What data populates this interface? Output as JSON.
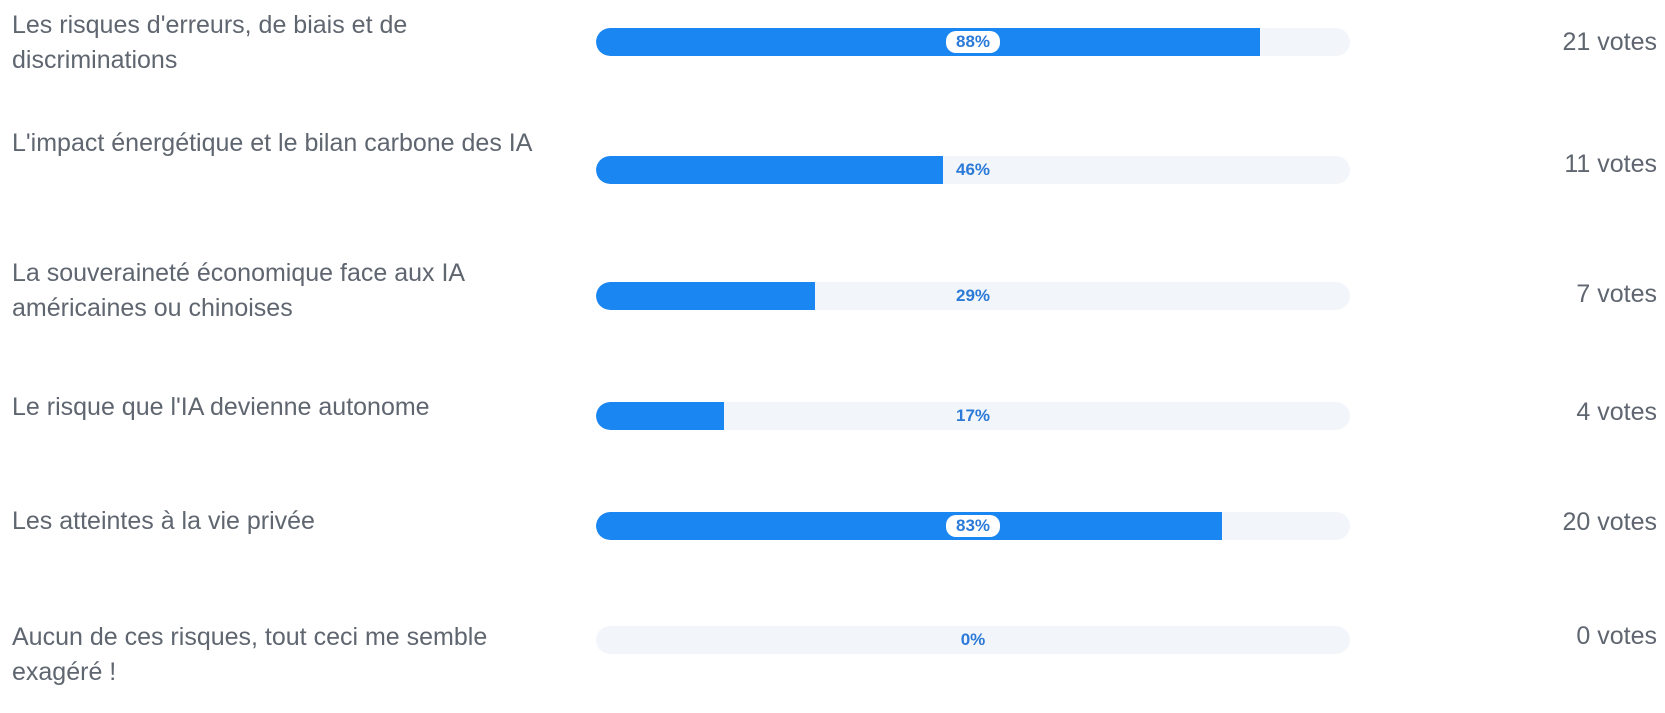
{
  "chart_data": {
    "type": "bar",
    "categories": [
      "Les risques d'erreurs, de biais et de discriminations",
      "L'impact énergétique et le bilan carbone des IA",
      "La souveraineté économique face aux IA américaines ou chinoises",
      "Le risque que l'IA devienne autonome",
      "Les atteintes à la vie privée",
      "Aucun de ces risques, tout ceci me semble exagéré !"
    ],
    "values": [
      88,
      46,
      29,
      17,
      83,
      0
    ],
    "percent_labels": [
      "88%",
      "46%",
      "29%",
      "17%",
      "83%",
      "0%"
    ],
    "votes": [
      21,
      11,
      7,
      4,
      20,
      0
    ],
    "vote_labels": [
      "21 votes",
      "11 votes",
      "7 votes",
      "4 votes",
      "20 votes",
      "0 votes"
    ],
    "xlim": [
      0,
      100
    ]
  },
  "colors": {
    "bar_fill": "#1a86f2",
    "bar_track": "#f2f5f9",
    "percent_text": "#2b7ad8",
    "label_text": "#5f6670"
  }
}
